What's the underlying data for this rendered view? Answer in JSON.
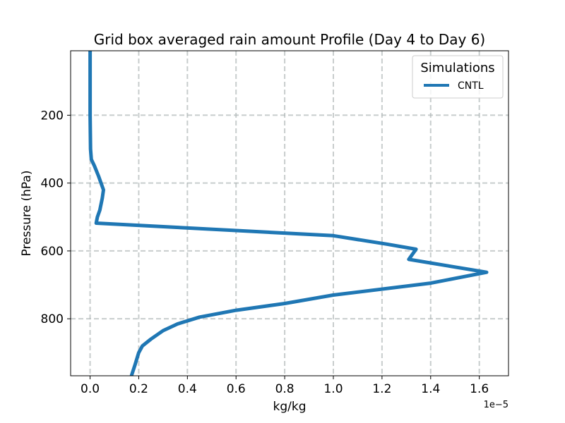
{
  "chart_data": {
    "type": "line",
    "title": "Grid box averaged rain amount Profile (Day 4 to Day 6)",
    "xlabel": "kg/kg",
    "ylabel": "Pressure (hPa)",
    "x_offset_label": "1e−5",
    "xlim": [
      -0.08,
      1.72
    ],
    "ylim": [
      968,
      10
    ],
    "y_inverted": true,
    "xticks": [
      0.0,
      0.2,
      0.4,
      0.6,
      0.8,
      1.0,
      1.2,
      1.4,
      1.6
    ],
    "xtick_labels": [
      "0.0",
      "0.2",
      "0.4",
      "0.6",
      "0.8",
      "1.0",
      "1.2",
      "1.4",
      "1.6"
    ],
    "yticks": [
      200,
      400,
      600,
      800
    ],
    "ytick_labels": [
      "200",
      "400",
      "600",
      "800"
    ],
    "grid": true,
    "grid_style": "dashed",
    "legend": {
      "title": "Simulations",
      "position": "top-right"
    },
    "series": [
      {
        "name": "CNTL",
        "color": "#1f77b4",
        "x": [
          0.0,
          0.0,
          0.0,
          0.002,
          0.005,
          0.018,
          0.035,
          0.055,
          0.05,
          0.04,
          0.03,
          0.025,
          1.0,
          1.22,
          1.34,
          1.31,
          1.63,
          1.4,
          1.0,
          0.8,
          0.6,
          0.45,
          0.36,
          0.3,
          0.25,
          0.215,
          0.2,
          0.185,
          0.17
        ],
        "y": [
          10,
          100,
          200,
          300,
          330,
          350,
          380,
          420,
          445,
          480,
          500,
          518,
          555,
          580,
          595,
          625,
          663,
          695,
          730,
          755,
          775,
          795,
          815,
          835,
          860,
          880,
          900,
          935,
          968
        ]
      }
    ]
  }
}
